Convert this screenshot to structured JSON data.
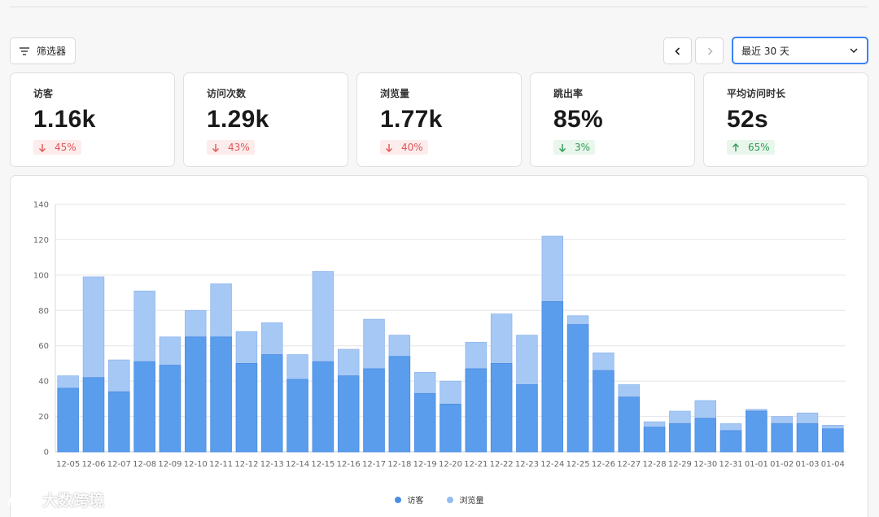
{
  "toolbar": {
    "filter_label": "筛选器",
    "range_label": "最近 30 天"
  },
  "stats": [
    {
      "label": "访客",
      "value": "1.16k",
      "delta": "45%",
      "direction": "down"
    },
    {
      "label": "访问次数",
      "value": "1.29k",
      "delta": "43%",
      "direction": "down"
    },
    {
      "label": "浏览量",
      "value": "1.77k",
      "delta": "40%",
      "direction": "down"
    },
    {
      "label": "跳出率",
      "value": "85%",
      "delta": "3%",
      "direction": "up-good-down"
    },
    {
      "label": "平均访问时长",
      "value": "52s",
      "delta": "65%",
      "direction": "up"
    }
  ],
  "colors": {
    "visitors": "#5b9ded",
    "pageviews": "#a6c8f5",
    "accent": "#3b82f6",
    "negative": "#e05656",
    "positive": "#2e9a52"
  },
  "chart_data": {
    "type": "bar",
    "stacked": "overlay",
    "categories": [
      "12-05",
      "12-06",
      "12-07",
      "12-08",
      "12-09",
      "12-10",
      "12-11",
      "12-12",
      "12-13",
      "12-14",
      "12-15",
      "12-16",
      "12-17",
      "12-18",
      "12-19",
      "12-20",
      "12-21",
      "12-22",
      "12-23",
      "12-24",
      "12-25",
      "12-26",
      "12-27",
      "12-28",
      "12-29",
      "12-30",
      "12-31",
      "01-01",
      "01-02",
      "01-03",
      "01-04"
    ],
    "series": [
      {
        "name": "访客",
        "values": [
          36,
          42,
          34,
          51,
          49,
          65,
          65,
          50,
          55,
          41,
          51,
          43,
          47,
          54,
          33,
          27,
          47,
          50,
          38,
          85,
          72,
          46,
          31,
          14,
          16,
          19,
          12,
          23,
          16,
          16,
          13
        ]
      },
      {
        "name": "浏览量",
        "values": [
          43,
          99,
          52,
          91,
          65,
          80,
          95,
          68,
          73,
          55,
          102,
          58,
          75,
          66,
          45,
          40,
          62,
          78,
          66,
          122,
          77,
          56,
          38,
          17,
          23,
          29,
          16,
          24,
          20,
          22,
          15
        ]
      }
    ],
    "ylim": [
      0,
      140
    ],
    "yticks": [
      0,
      20,
      40,
      60,
      80,
      100,
      120,
      140
    ],
    "grid": true,
    "legend": "bottom-center"
  },
  "watermark": {
    "text": "大数跨境"
  }
}
